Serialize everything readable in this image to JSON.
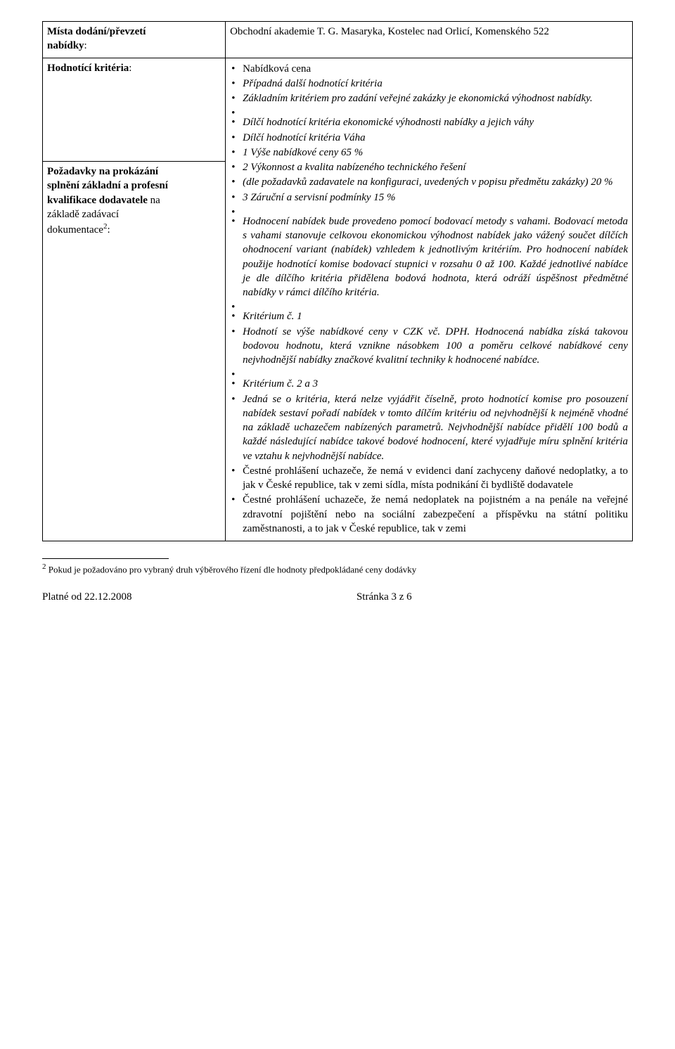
{
  "row1": {
    "left_l1": "Místa dodání/převzetí",
    "left_l2": "nabídky",
    "right": "Obchodní akademie T. G. Masaryka, Kostelec nad Orlicí, Komenského 522"
  },
  "row2": {
    "left": "Hodnotící kritéria",
    "b1": "Nabídková cena",
    "b2": "Případná další hodnotící kritéria",
    "b3": "Základním kritériem pro zadání veřejné zakázky je ekonomická výhodnost nabídky.",
    "b4": "Dílčí hodnotící kritéria ekonomické výhodnosti nabídky a jejich váhy",
    "b5": "Dílčí hodnotící kritéria Váha",
    "b6": "1         Výše nabídkové ceny      65 %",
    "b7": "2         Výkonnost a kvalita nabízeného technického řešení",
    "b8": "(dle požadavků zadavatele na konfiguraci, uvedených v popisu předmětu zakázky)        20 %",
    "b9": "3         Záruční a servisní podmínky       15 %",
    "b10": "Hodnocení nabídek bude provedeno pomocí bodovací metody s vahami. Bodovací metoda s vahami stanovuje celkovou ekonomickou výhodnost nabídek jako vážený součet dílčích ohodnocení variant (nabídek) vzhledem k jednotlivým kritériím. Pro hodnocení nabídek použije hodnotící komise bodovací stupnici v rozsahu 0 až 100. Každé jednotlivé nabídce je dle dílčího kritéria přidělena bodová hodnota, která odráží úspěšnost předmětné nabídky v rámci dílčího kritéria.",
    "b11": "Kritérium č. 1",
    "b12": "Hodnotí se výše nabídkové ceny v CZK vč. DPH. Hodnocená nabídka získá takovou bodovou hodnotu, která vznikne násobkem 100 a poměru celkové nabídkové ceny nejvhodnější nabídky značkové kvalitní techniky k hodnocené nabídce.",
    "b13": "Kritérium č. 2 a 3",
    "b14": "Jedná se o kritéria, která nelze vyjádřit číselně, proto hodnotící komise pro posouzení nabídek sestaví pořadí nabídek v tomto dílčím kritériu od nejvhodnější k nejméně vhodné na základě uchazečem nabízených parametrů.  Nejvhodnější nabídce přidělí 100 bodů a každé následující nabídce takové bodové hodnocení, které vyjadřuje míru splnění kritéria ve vztahu k nejvhodnější nabídce."
  },
  "row3": {
    "left_l1": "Požadavky na prokázání",
    "left_l2": "splnění základní a profesní",
    "left_l3": "kvalifikace dodavatele",
    "left_l3b": " na",
    "left_l4": "základě zadávací",
    "left_l5": "dokumentace",
    "sup": "2",
    "b1": "Čestné prohlášení uchazeče, že nemá v evidenci daní zachyceny daňové nedoplatky, a to jak v České republice, tak v zemi sídla, místa podnikání či bydliště dodavatele",
    "b2": "Čestné prohlášení uchazeče, že nemá nedoplatek na pojistném a na penále na veřejné zdravotní pojištění nebo na sociální zabezpečení a příspěvku na státní politiku zaměstnanosti, a to jak v České republice, tak v zemi"
  },
  "footnote": {
    "marker": "2",
    "text": " Pokud je požadováno pro vybraný druh výběrového řízení dle hodnoty předpokládané ceny dodávky"
  },
  "footer": {
    "left": "Platné od 22.12.2008",
    "right": "Stránka 3 z 6"
  }
}
